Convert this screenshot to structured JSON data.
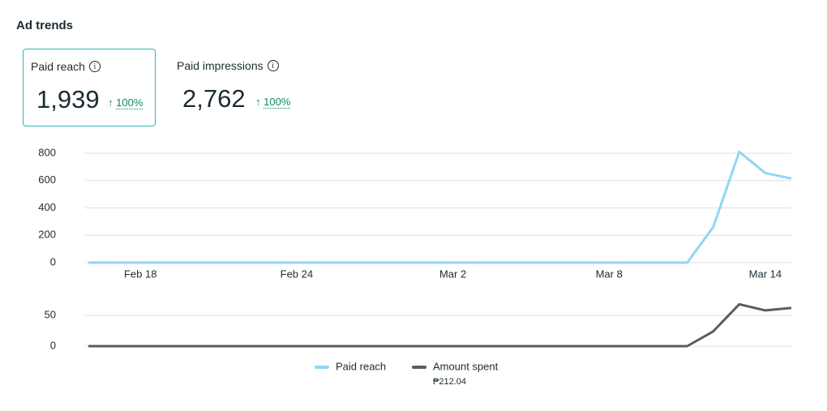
{
  "title": "Ad trends",
  "metrics": [
    {
      "label": "Paid reach",
      "value": "1,939",
      "change": "100%",
      "selected": true
    },
    {
      "label": "Paid impressions",
      "value": "2,762",
      "change": "100%",
      "selected": false
    }
  ],
  "legend_note": "₱212.04",
  "chart_data": [
    {
      "type": "line",
      "categories": [
        null,
        null,
        "Feb 18",
        null,
        null,
        null,
        null,
        null,
        "Feb 24",
        null,
        null,
        null,
        null,
        null,
        "Mar 2",
        null,
        null,
        null,
        null,
        null,
        "Mar 8",
        null,
        null,
        null,
        null,
        null,
        "Mar 14",
        null
      ],
      "series": [
        {
          "name": "Paid reach",
          "color": "#8fd6f5",
          "values": [
            0,
            0,
            0,
            0,
            0,
            0,
            0,
            0,
            0,
            0,
            0,
            0,
            0,
            0,
            0,
            0,
            0,
            0,
            0,
            0,
            0,
            0,
            0,
            0,
            260,
            810,
            655,
            615
          ]
        }
      ],
      "ylim": [
        0,
        820
      ],
      "yticks": [
        0,
        200,
        400,
        600,
        800
      ],
      "grid": true
    },
    {
      "type": "line",
      "series": [
        {
          "name": "Amount spent",
          "color": "#5f5b5c",
          "values": [
            0,
            0,
            0,
            0,
            0,
            0,
            0,
            0,
            0,
            0,
            0,
            0,
            0,
            0,
            0,
            0,
            0,
            0,
            0,
            0,
            0,
            0,
            0,
            0,
            24,
            68,
            58,
            62
          ]
        }
      ],
      "ylim": [
        0,
        75
      ],
      "yticks": [
        0,
        50
      ],
      "grid": true
    }
  ]
}
